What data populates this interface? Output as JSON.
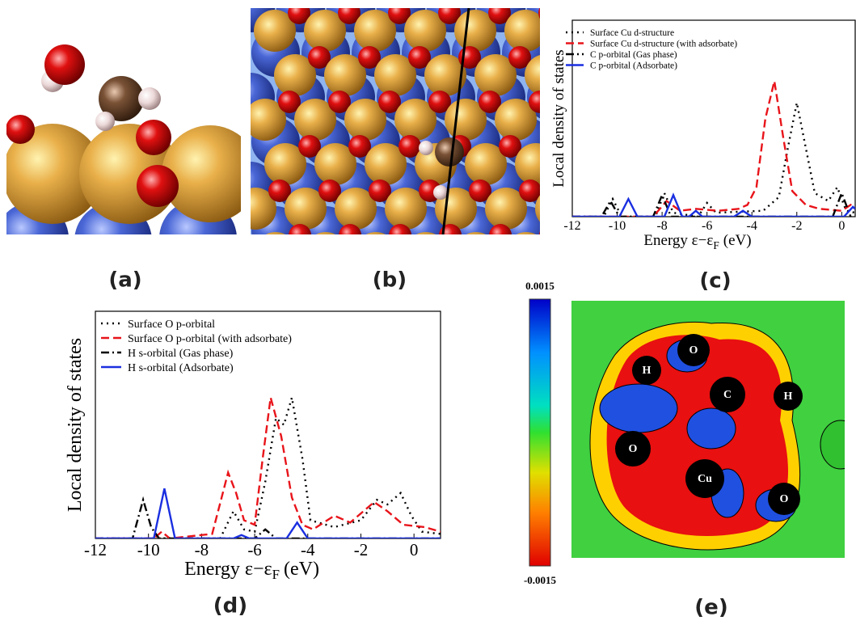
{
  "chart_data": [
    {
      "type": "line",
      "x_label": "Energy ε−ε",
      "x_label_sub": "F",
      "x_label_unit": "(eV)",
      "y_label": "Local density of states",
      "xlim": [
        -12,
        0.6
      ],
      "ylim": [
        0,
        10
      ],
      "xticks": [
        -12,
        -10,
        -8,
        -6,
        -4,
        -2,
        0
      ],
      "series": [
        {
          "name": "Surface Cu d-structure",
          "color": "#000000",
          "dash": "dotted",
          "x": [
            -12,
            -10.6,
            -10.2,
            -9.8,
            -8.3,
            -7.9,
            -7.5,
            -6.4,
            -6.0,
            -5.6,
            -3.5,
            -2.8,
            -2.4,
            -2.0,
            -1.6,
            -1.2,
            -0.6,
            -0.2,
            0.2,
            0.6
          ],
          "values": [
            0,
            0,
            0.9,
            0,
            0,
            1.2,
            0.2,
            0,
            0.7,
            0.2,
            0.3,
            1,
            3.5,
            5.8,
            3.5,
            1.2,
            0.8,
            1.5,
            0.3,
            0.2
          ]
        },
        {
          "name": "Surface Cu d-structure (with adsorbate)",
          "color": "#e8141a",
          "dash": "dashed",
          "x": [
            -12,
            -8.4,
            -7.8,
            -7.2,
            -6.5,
            -5.5,
            -4.6,
            -4.2,
            -3.8,
            -3.4,
            -3.0,
            -2.6,
            -2.2,
            -1.6,
            -1,
            0,
            0.4,
            0.6
          ],
          "values": [
            0,
            0,
            0.8,
            0.3,
            0.4,
            0.3,
            0.4,
            0.6,
            1.5,
            5.0,
            6.9,
            4.0,
            1.3,
            0.6,
            0.4,
            0.3,
            0.6,
            0.4
          ]
        },
        {
          "name": "C p-orbital (Gas phase)",
          "color": "#000000",
          "dash": "dashdot",
          "x": [
            -12,
            -10.7,
            -10.3,
            -9.9,
            -8.4,
            -8.0,
            -7.6,
            -0.4,
            0,
            0.4
          ],
          "values": [
            0,
            0,
            0.8,
            0,
            0,
            1.1,
            0,
            0,
            1.2,
            0
          ]
        },
        {
          "name": "C p-orbital (Adsorbate)",
          "color": "#1a2fe0",
          "dash": "solid",
          "x": [
            -12,
            -9.9,
            -9.5,
            -9.1,
            -7.9,
            -7.5,
            -7.1,
            -6.8,
            -6.5,
            -6.2,
            -4.8,
            -4.4,
            -4.0,
            0.1,
            0.5,
            0.6
          ],
          "values": [
            0,
            0,
            0.9,
            0,
            0,
            1.1,
            0,
            0,
            0.3,
            0,
            0,
            0.3,
            0,
            0,
            0.5,
            0.4
          ]
        }
      ]
    },
    {
      "type": "line",
      "x_label": "Energy ε−ε",
      "x_label_sub": "F",
      "x_label_unit": "(eV)",
      "y_label": "Local density of states",
      "xlim": [
        -12,
        1
      ],
      "ylim": [
        0,
        10
      ],
      "xticks": [
        -12,
        -10,
        -8,
        -6,
        -4,
        -2,
        0
      ],
      "series": [
        {
          "name": "Surface O p-orbital",
          "color": "#000000",
          "dash": "dotted",
          "x": [
            -12,
            -7.3,
            -6.8,
            -6.4,
            -6.0,
            -5.6,
            -5.2,
            -4.9,
            -4.6,
            -4.2,
            -3.9,
            -3,
            -2,
            -1.4,
            -1,
            -0.5,
            -0.1,
            0.3,
            1
          ],
          "values": [
            0,
            0,
            1.2,
            0.4,
            0.3,
            2.5,
            5.3,
            5.0,
            6.2,
            3.5,
            0.8,
            0.5,
            0.8,
            1.7,
            1.5,
            2.0,
            1.0,
            0.3,
            0.2
          ]
        },
        {
          "name": "Surface O p-orbital (with adsorbate)",
          "color": "#e8141a",
          "dash": "dashed",
          "x": [
            -12,
            -9.8,
            -9.5,
            -9.2,
            -7.6,
            -7.0,
            -6.7,
            -6.4,
            -6.0,
            -5.7,
            -5.4,
            -5.0,
            -4.6,
            -4.2,
            -3.8,
            -3.0,
            -2.4,
            -1.5,
            -1.0,
            -0.4,
            0.4,
            1
          ],
          "values": [
            0,
            0,
            0.3,
            0,
            0.2,
            2.9,
            2.0,
            0.8,
            0.6,
            3.5,
            6.2,
            4.5,
            1.8,
            0.6,
            0.4,
            1.0,
            0.7,
            1.6,
            1.2,
            0.6,
            0.5,
            0.3
          ]
        },
        {
          "name": "H s-orbital (Gas phase)",
          "color": "#000000",
          "dash": "dashdot",
          "x": [
            -12,
            -10.6,
            -10.2,
            -9.9,
            -9.6,
            -6,
            -5.6,
            -5.2,
            1
          ],
          "values": [
            0,
            0,
            1.7,
            0.5,
            0,
            0,
            0.4,
            0,
            0
          ]
        },
        {
          "name": "H s-orbital (Adsorbate)",
          "color": "#1a2fe0",
          "dash": "solid",
          "x": [
            -12,
            -9.8,
            -9.4,
            -9.0,
            -6.8,
            -6.5,
            -6.2,
            -4.8,
            -4.4,
            -4.0,
            1
          ],
          "values": [
            0,
            0,
            2.2,
            0,
            0,
            0.15,
            0,
            0,
            0.7,
            0,
            0
          ]
        }
      ]
    }
  ],
  "panels": {
    "labels": [
      "(a)",
      "(b)",
      "(c)",
      "(d)",
      "(e)"
    ]
  },
  "colorbar": {
    "max": 0.0015,
    "min": -0.0015
  },
  "atoms": [
    "O",
    "H",
    "C",
    "H",
    "O",
    "Cu",
    "O"
  ]
}
